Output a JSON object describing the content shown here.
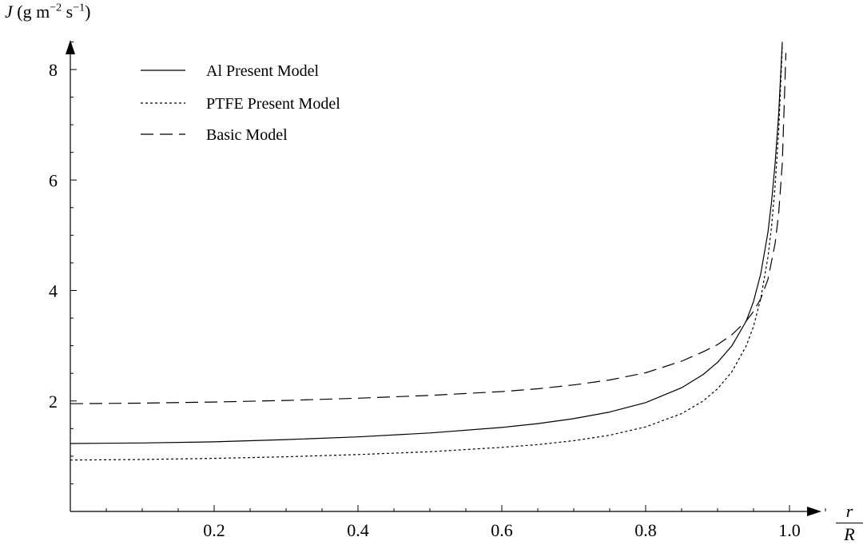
{
  "chart_data": {
    "type": "line",
    "y_axis": {
      "symbol": "J",
      "unit_prefix": "(g m",
      "exp1": "−2",
      "unit_mid": " s",
      "exp2": "−1",
      "unit_suffix": ")"
    },
    "x_axis": {
      "numerator": "r",
      "denominator": "R"
    },
    "xlim": [
      0,
      1.07
    ],
    "ylim": [
      0,
      8.7
    ],
    "xticks": [
      0.2,
      0.4,
      0.6,
      0.8,
      1.0
    ],
    "xtick_labels": [
      "0.2",
      "0.4",
      "0.6",
      "0.8",
      "1.0"
    ],
    "yticks": [
      2,
      4,
      6,
      8
    ],
    "ytick_labels": [
      "2",
      "4",
      "6",
      "8"
    ],
    "grid": false,
    "legend_position": "top-left",
    "series": [
      {
        "name": "Al Present Model",
        "style": "solid",
        "x": [
          0,
          0.1,
          0.2,
          0.3,
          0.4,
          0.5,
          0.6,
          0.65,
          0.7,
          0.75,
          0.8,
          0.85,
          0.88,
          0.9,
          0.92,
          0.94,
          0.95,
          0.96,
          0.97,
          0.975,
          0.98,
          0.985,
          0.99
        ],
        "y": [
          1.23,
          1.24,
          1.26,
          1.3,
          1.35,
          1.42,
          1.52,
          1.59,
          1.68,
          1.8,
          1.97,
          2.24,
          2.48,
          2.7,
          3.0,
          3.45,
          3.8,
          4.3,
          5.05,
          5.6,
          6.3,
          7.2,
          8.5
        ]
      },
      {
        "name": "PTFE Present Model",
        "style": "dotted",
        "x": [
          0,
          0.1,
          0.2,
          0.3,
          0.4,
          0.5,
          0.6,
          0.65,
          0.7,
          0.75,
          0.8,
          0.85,
          0.88,
          0.9,
          0.92,
          0.94,
          0.95,
          0.96,
          0.97,
          0.975,
          0.98,
          0.985,
          0.99
        ],
        "y": [
          0.93,
          0.94,
          0.96,
          0.99,
          1.03,
          1.08,
          1.16,
          1.21,
          1.28,
          1.38,
          1.53,
          1.77,
          2.0,
          2.22,
          2.53,
          3.0,
          3.35,
          3.85,
          4.6,
          5.15,
          5.9,
          6.9,
          8.4
        ]
      },
      {
        "name": "Basic Model",
        "style": "dashed",
        "x": [
          0,
          0.1,
          0.2,
          0.3,
          0.4,
          0.5,
          0.6,
          0.65,
          0.7,
          0.75,
          0.8,
          0.85,
          0.88,
          0.9,
          0.92,
          0.94,
          0.95,
          0.96,
          0.97,
          0.98,
          0.985,
          0.99,
          0.995
        ],
        "y": [
          1.95,
          1.96,
          1.98,
          2.01,
          2.05,
          2.1,
          2.17,
          2.22,
          2.29,
          2.38,
          2.51,
          2.72,
          2.89,
          3.02,
          3.2,
          3.45,
          3.62,
          3.85,
          4.2,
          4.85,
          5.4,
          6.3,
          8.3
        ]
      }
    ]
  }
}
